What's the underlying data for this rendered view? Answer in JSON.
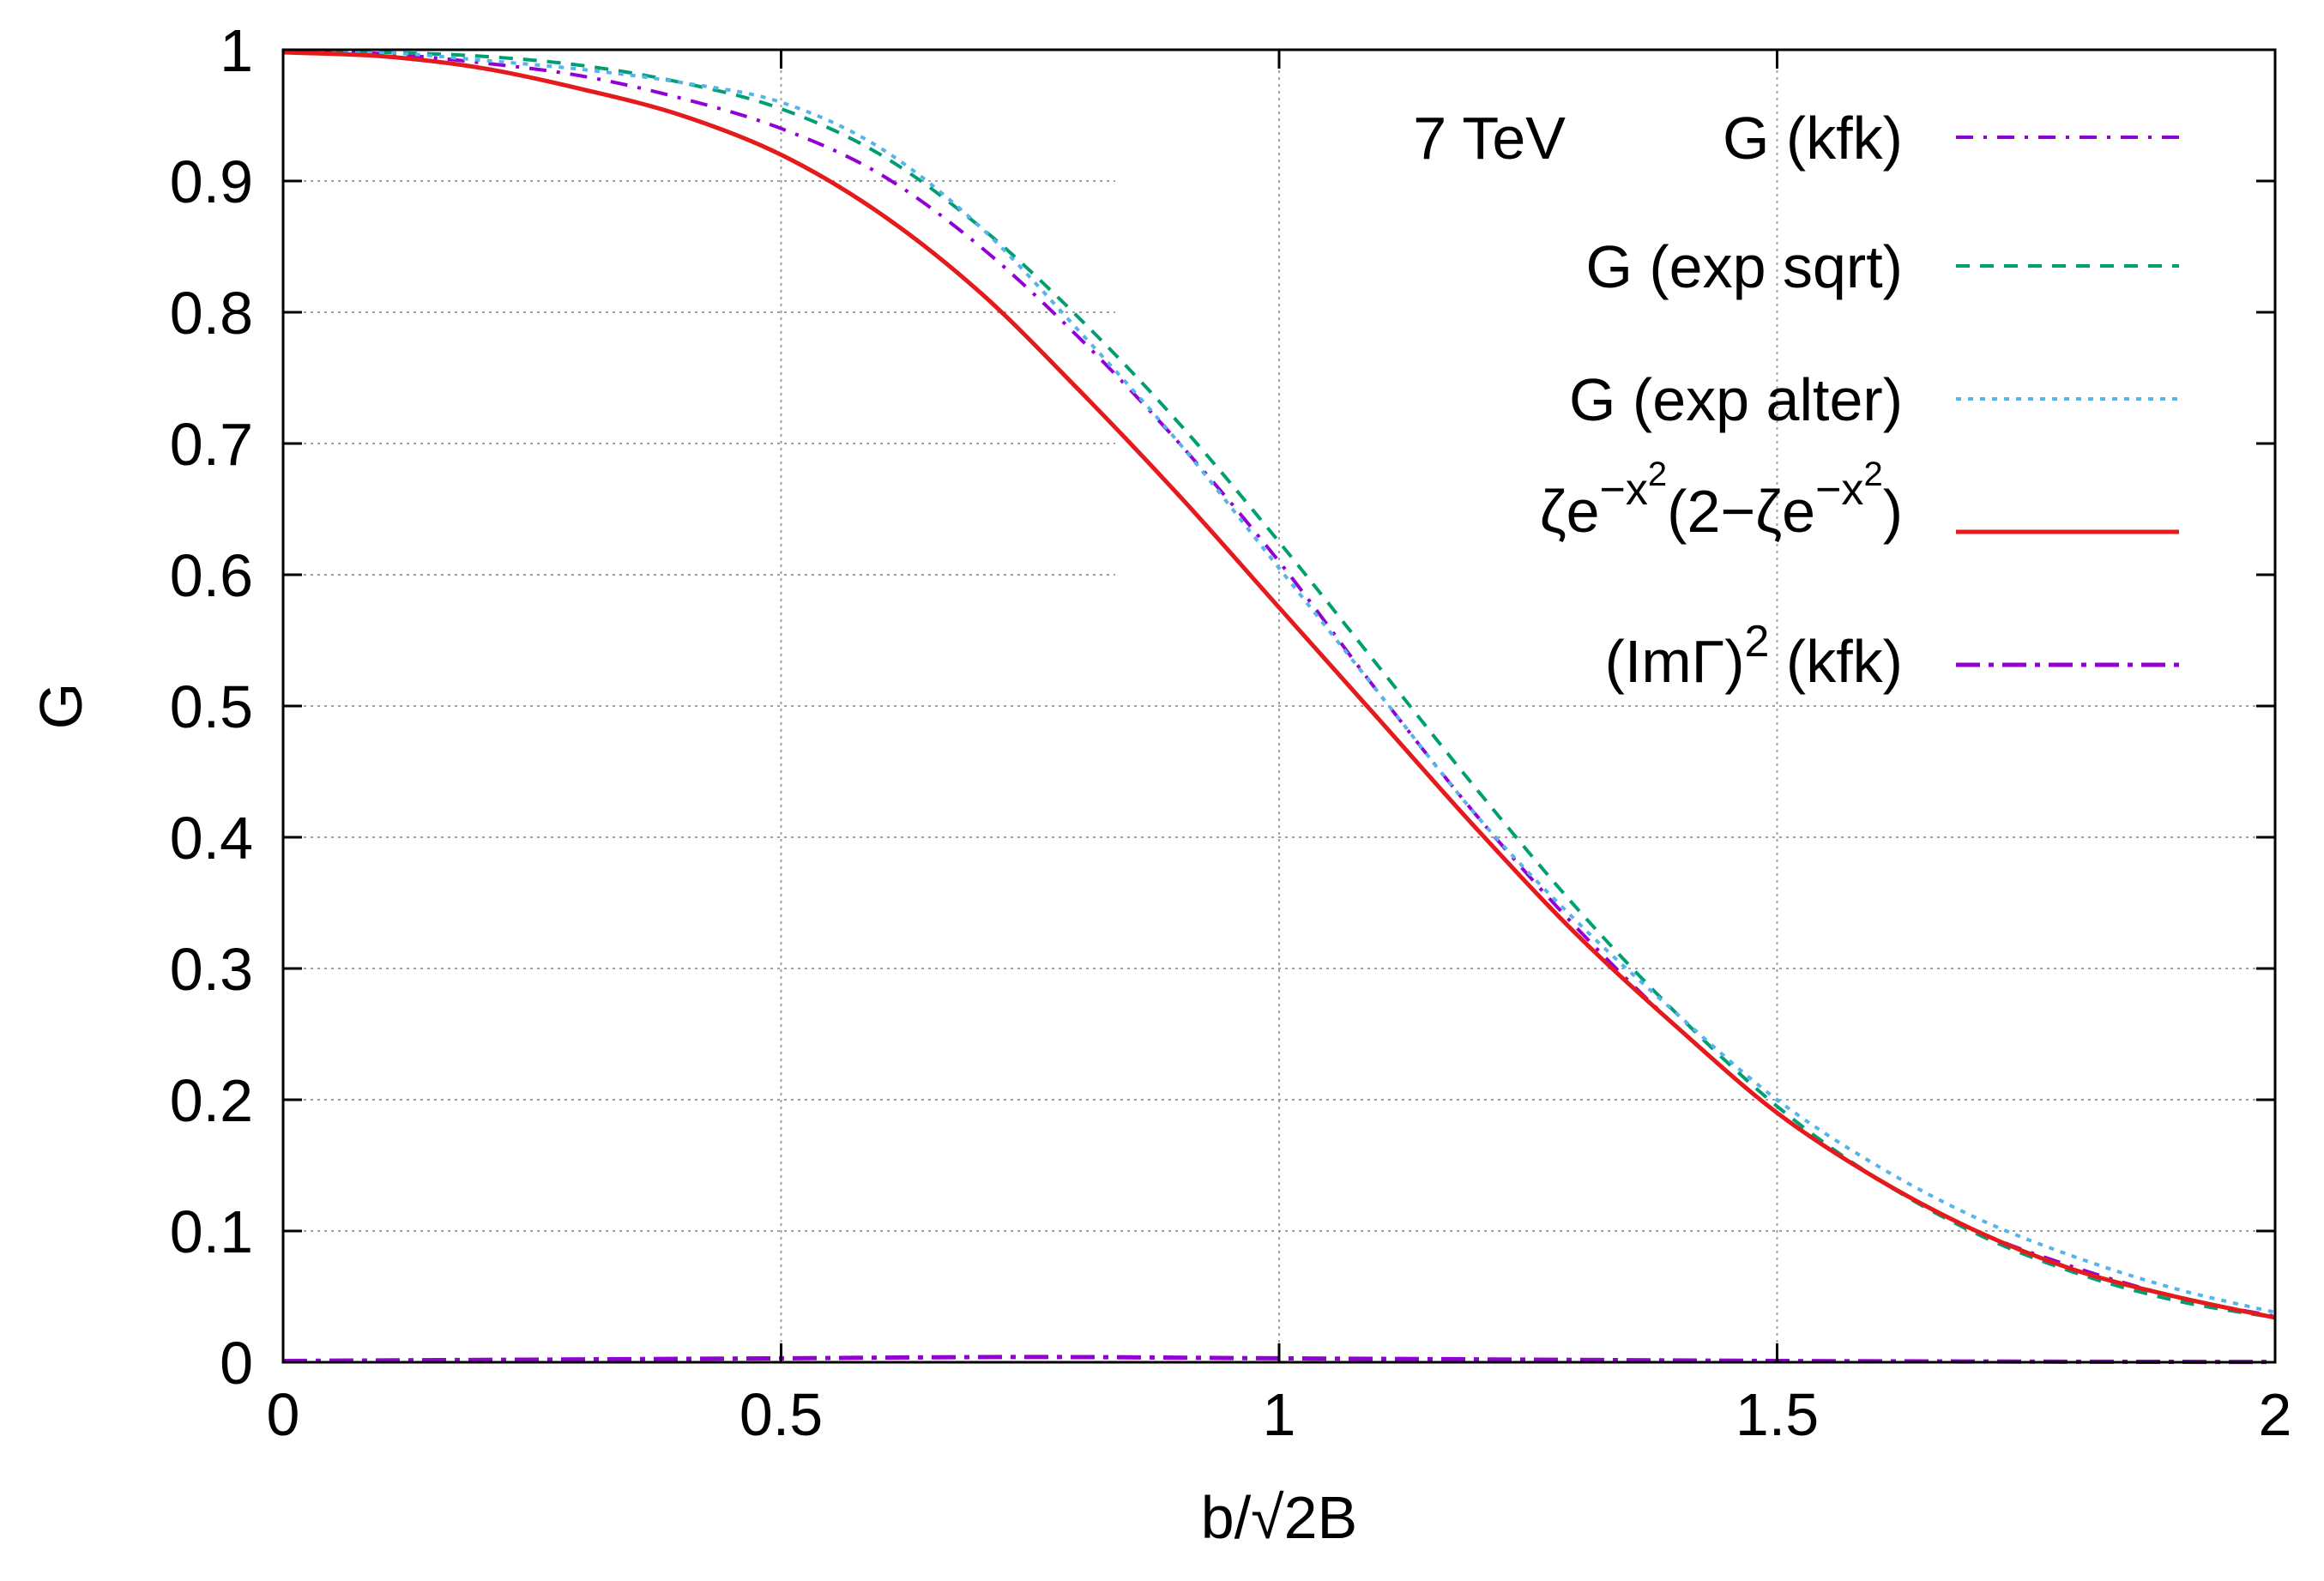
{
  "chart_data": {
    "type": "line",
    "title": "",
    "xlabel": "b/√2B",
    "ylabel": "G",
    "xlim": [
      0,
      2
    ],
    "ylim": [
      0,
      1
    ],
    "grid": true,
    "legend_position": "top-right",
    "legend_header": "7 TeV",
    "x_ticks": [
      {
        "value": 0,
        "label": "0"
      },
      {
        "value": 0.5,
        "label": "0.5"
      },
      {
        "value": 1,
        "label": "1"
      },
      {
        "value": 1.5,
        "label": "1.5"
      },
      {
        "value": 2,
        "label": "2"
      }
    ],
    "y_ticks": [
      {
        "value": 0,
        "label": "0"
      },
      {
        "value": 0.1,
        "label": "0.1"
      },
      {
        "value": 0.2,
        "label": "0.2"
      },
      {
        "value": 0.3,
        "label": "0.3"
      },
      {
        "value": 0.4,
        "label": "0.4"
      },
      {
        "value": 0.5,
        "label": "0.5"
      },
      {
        "value": 0.6,
        "label": "0.6"
      },
      {
        "value": 0.7,
        "label": "0.7"
      },
      {
        "value": 0.8,
        "label": "0.8"
      },
      {
        "value": 0.9,
        "label": "0.9"
      },
      {
        "value": 1,
        "label": "1"
      }
    ],
    "series": [
      {
        "name": "G (kfk)",
        "color": "#9400d3",
        "dash": "20 12 4 12",
        "width": 4,
        "x": [
          0,
          0.1,
          0.2,
          0.3,
          0.4,
          0.5,
          0.6,
          0.7,
          0.8,
          0.9,
          1.0,
          1.1,
          1.2,
          1.3,
          1.4,
          1.5,
          1.6,
          1.7,
          1.8,
          1.9,
          2.0
        ],
        "y": [
          0.999,
          0.997,
          0.99,
          0.98,
          0.963,
          0.94,
          0.905,
          0.85,
          0.78,
          0.7,
          0.61,
          0.51,
          0.415,
          0.33,
          0.255,
          0.19,
          0.14,
          0.1,
          0.072,
          0.05,
          0.035
        ]
      },
      {
        "name": "G (exp sqrt)",
        "color": "#009e73",
        "dash": "16 12",
        "width": 4,
        "x": [
          0,
          0.1,
          0.2,
          0.3,
          0.4,
          0.5,
          0.6,
          0.7,
          0.8,
          0.9,
          1.0,
          1.1,
          1.2,
          1.3,
          1.4,
          1.5,
          1.6,
          1.7,
          1.8,
          1.9,
          2.0
        ],
        "y": [
          0.999,
          0.998,
          0.995,
          0.988,
          0.975,
          0.955,
          0.92,
          0.865,
          0.795,
          0.715,
          0.625,
          0.53,
          0.435,
          0.345,
          0.265,
          0.195,
          0.14,
          0.098,
          0.068,
          0.047,
          0.034
        ]
      },
      {
        "name": "G (exp alter)",
        "color": "#56b4e9",
        "dash": "6 8",
        "width": 4,
        "x": [
          0,
          0.1,
          0.2,
          0.3,
          0.4,
          0.5,
          0.6,
          0.7,
          0.8,
          0.9,
          1.0,
          1.1,
          1.2,
          1.3,
          1.4,
          1.5,
          1.6,
          1.7,
          1.8,
          1.9,
          2.0
        ],
        "y": [
          0.999,
          0.998,
          0.992,
          0.985,
          0.975,
          0.96,
          0.925,
          0.865,
          0.785,
          0.7,
          0.605,
          0.51,
          0.415,
          0.335,
          0.265,
          0.2,
          0.15,
          0.11,
          0.08,
          0.056,
          0.038
        ]
      },
      {
        "name": "ζe^{−x²}(2−ζe^{−x²})",
        "color": "#e41a1c",
        "dash": "",
        "width": 5,
        "x": [
          0,
          0.1,
          0.2,
          0.3,
          0.4,
          0.5,
          0.6,
          0.7,
          0.8,
          0.9,
          1.0,
          1.1,
          1.2,
          1.3,
          1.4,
          1.5,
          1.6,
          1.7,
          1.8,
          1.9,
          2.0
        ],
        "y": [
          0.998,
          0.995,
          0.986,
          0.97,
          0.95,
          0.92,
          0.875,
          0.815,
          0.74,
          0.66,
          0.575,
          0.49,
          0.405,
          0.325,
          0.255,
          0.19,
          0.14,
          0.1,
          0.07,
          0.05,
          0.034
        ]
      },
      {
        "name": "(ImΓ)² (kfk)",
        "color": "#9400d3",
        "dash": "28 10 6 10",
        "width": 5,
        "x": [
          0,
          0.25,
          0.5,
          0.75,
          1.0,
          1.25,
          1.5,
          1.75,
          2.0
        ],
        "y": [
          0.001,
          0.002,
          0.003,
          0.004,
          0.003,
          0.002,
          0.001,
          0.0005,
          0.0002
        ]
      }
    ]
  }
}
